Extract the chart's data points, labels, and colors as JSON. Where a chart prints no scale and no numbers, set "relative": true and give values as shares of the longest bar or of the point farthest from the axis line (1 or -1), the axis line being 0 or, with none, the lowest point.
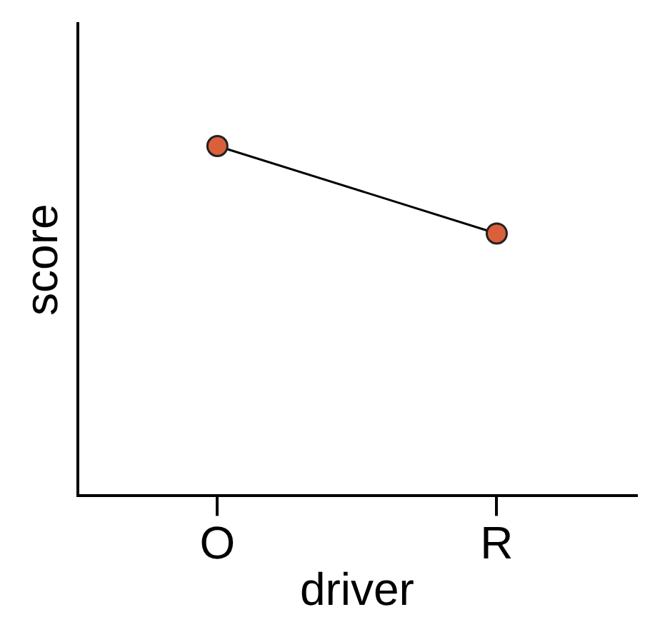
{
  "chart_data": {
    "type": "line",
    "xlabel": "driver",
    "ylabel": "score",
    "categories": [
      "O",
      "R"
    ],
    "relative": true,
    "series": [
      {
        "color": "#d9603b",
        "values": [
          1,
          0.75
        ]
      }
    ],
    "marker": "circle",
    "line_style": "solid",
    "grid": false,
    "legend": false
  }
}
